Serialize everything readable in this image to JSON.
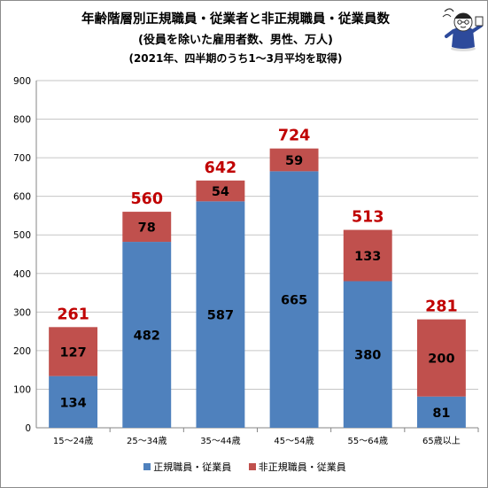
{
  "title_lines": [
    "年齢階層別正規職員・従業者と非正規職員・従業員数",
    "(役員を除いた雇用者数、男性、万人)",
    "(2021年、四半期のうち1～3月平均を取得)"
  ],
  "colors": {
    "regular": "#4f81bd",
    "nonregular": "#c0504d",
    "total_label": "#c00000",
    "grid": "#c6c6c6",
    "axis": "#868686"
  },
  "chart_data": {
    "type": "bar",
    "stacked": true,
    "categories": [
      "15～24歳",
      "25～34歳",
      "35～44歳",
      "45～54歳",
      "55～64歳",
      "65歳以上"
    ],
    "series": [
      {
        "name": "正規職員・従業員",
        "values": [
          134,
          482,
          587,
          665,
          380,
          81
        ]
      },
      {
        "name": "非正規職員・従業員",
        "values": [
          127,
          78,
          54,
          59,
          133,
          200
        ]
      }
    ],
    "totals": [
      261,
      560,
      642,
      724,
      513,
      281
    ],
    "ylim": [
      0,
      900
    ],
    "yticks": [
      0,
      100,
      200,
      300,
      400,
      500,
      600,
      700,
      800,
      900
    ],
    "grid": true,
    "legend_position": "bottom"
  }
}
